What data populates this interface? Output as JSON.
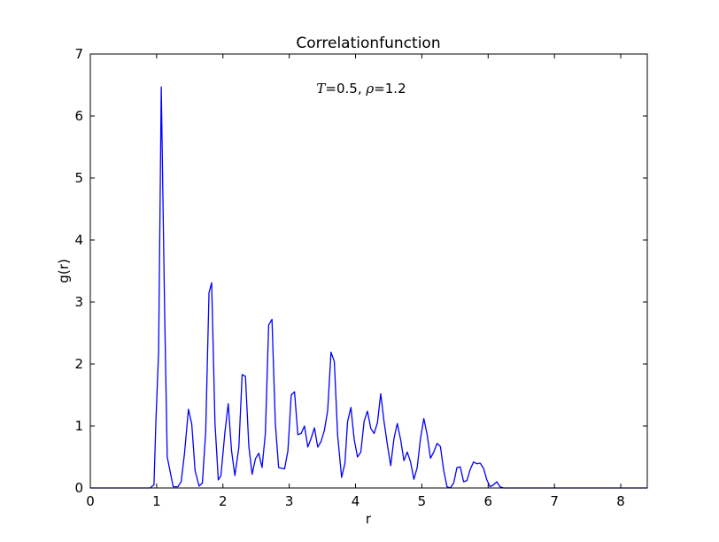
{
  "chart_data": {
    "type": "line",
    "title": "Correlationfunction",
    "xlabel": "r",
    "ylabel": "g(r)",
    "annotation": {
      "T_symbol": "T",
      "T_value": "=0.5, ",
      "rho_symbol": "ρ",
      "rho_value": "=1.2"
    },
    "xlim": [
      0,
      8.4
    ],
    "ylim": [
      0,
      7
    ],
    "x_ticks": [
      "0",
      "1",
      "2",
      "3",
      "4",
      "5",
      "6",
      "7",
      "8"
    ],
    "y_ticks": [
      "0",
      "1",
      "2",
      "3",
      "4",
      "5",
      "6",
      "7"
    ],
    "line_color": "#0000ff",
    "series": [
      {
        "name": "g(r)",
        "x": [
          0,
          0.9,
          0.96,
          0.99,
          1.03,
          1.07,
          1.12,
          1.16,
          1.25,
          1.32,
          1.37,
          1.42,
          1.48,
          1.53,
          1.58,
          1.64,
          1.69,
          1.74,
          1.79,
          1.83,
          1.88,
          1.93,
          1.97,
          2.03,
          2.08,
          2.13,
          2.18,
          2.24,
          2.29,
          2.34,
          2.39,
          2.44,
          2.49,
          2.54,
          2.59,
          2.64,
          2.69,
          2.74,
          2.79,
          2.84,
          2.88,
          2.93,
          2.98,
          3.03,
          3.08,
          3.13,
          3.18,
          3.23,
          3.28,
          3.33,
          3.38,
          3.43,
          3.48,
          3.53,
          3.58,
          3.63,
          3.68,
          3.73,
          3.79,
          3.84,
          3.88,
          3.93,
          3.98,
          4.03,
          4.08,
          4.13,
          4.18,
          4.23,
          4.28,
          4.33,
          4.38,
          4.43,
          4.48,
          4.53,
          4.58,
          4.63,
          4.68,
          4.73,
          4.78,
          4.83,
          4.88,
          4.93,
          4.98,
          5.03,
          5.08,
          5.13,
          5.18,
          5.23,
          5.28,
          5.33,
          5.38,
          5.43,
          5.48,
          5.53,
          5.58,
          5.63,
          5.68,
          5.73,
          5.78,
          5.83,
          5.88,
          5.93,
          5.98,
          6.03,
          6.08,
          6.13,
          6.18,
          6.23,
          6.28,
          6.33,
          6.38,
          6.43,
          6.48,
          6.53,
          6.58,
          6.63,
          8.4
        ],
        "y": [
          0,
          0.0,
          0.05,
          1.1,
          2.2,
          6.47,
          2.9,
          0.5,
          0.02,
          0.02,
          0.1,
          0.55,
          1.27,
          1.03,
          0.28,
          0.03,
          0.08,
          0.9,
          3.15,
          3.31,
          1.05,
          0.13,
          0.2,
          0.9,
          1.36,
          0.6,
          0.2,
          0.65,
          1.83,
          1.8,
          0.68,
          0.22,
          0.47,
          0.56,
          0.33,
          0.88,
          2.63,
          2.72,
          1.05,
          0.33,
          0.32,
          0.31,
          0.6,
          1.5,
          1.55,
          0.86,
          0.88,
          1.0,
          0.66,
          0.8,
          0.97,
          0.66,
          0.75,
          0.93,
          1.25,
          2.19,
          2.04,
          0.85,
          0.17,
          0.4,
          1.07,
          1.3,
          0.78,
          0.5,
          0.58,
          1.08,
          1.24,
          0.96,
          0.88,
          1.05,
          1.52,
          1.07,
          0.7,
          0.36,
          0.8,
          1.04,
          0.78,
          0.44,
          0.58,
          0.42,
          0.14,
          0.33,
          0.8,
          1.12,
          0.86,
          0.48,
          0.58,
          0.72,
          0.67,
          0.28,
          0.02,
          0.0,
          0.08,
          0.33,
          0.34,
          0.1,
          0.12,
          0.3,
          0.42,
          0.39,
          0.4,
          0.32,
          0.13,
          0.02,
          0.05,
          0.1,
          0.02,
          0.0,
          0.0,
          0.0,
          0.0,
          0.0,
          0.0,
          0.0,
          0.0,
          0.0,
          0
        ]
      }
    ]
  }
}
